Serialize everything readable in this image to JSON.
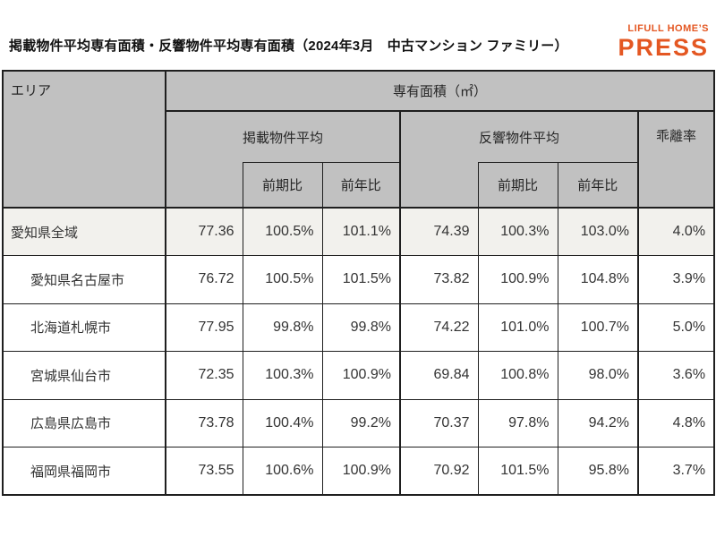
{
  "page": {
    "title": "掲載物件平均専有面積・反響物件平均専有面積（2024年3月　中古マンション ファミリー）",
    "logo": {
      "line1": "LIFULL HOME’S",
      "line2": "PRESS",
      "color": "#E45722"
    }
  },
  "table": {
    "headers": {
      "area": "エリア",
      "senyu_menseki": "専有面積（㎡）",
      "keisai_avg": "掲載物件平均",
      "hankyo_avg": "反響物件平均",
      "kairi_ritsu": "乖離率",
      "zenki_hi": "前期比",
      "zennen_hi": "前年比"
    },
    "colors": {
      "header_bg": "#c1c1c1",
      "highlight_row_bg": "#f2f1ed",
      "border": "#1f1f1f"
    },
    "rows": [
      {
        "area": "愛知県全域",
        "indent": false,
        "highlight": true,
        "keisai": "77.36",
        "keisai_zenki": "100.5%",
        "keisai_zennen": "101.1%",
        "hankyo": "74.39",
        "hankyo_zenki": "100.3%",
        "hankyo_zennen": "103.0%",
        "kairi": "4.0%"
      },
      {
        "area": "愛知県名古屋市",
        "indent": true,
        "highlight": false,
        "keisai": "76.72",
        "keisai_zenki": "100.5%",
        "keisai_zennen": "101.5%",
        "hankyo": "73.82",
        "hankyo_zenki": "100.9%",
        "hankyo_zennen": "104.8%",
        "kairi": "3.9%"
      },
      {
        "area": "北海道札幌市",
        "indent": true,
        "highlight": false,
        "keisai": "77.95",
        "keisai_zenki": "99.8%",
        "keisai_zennen": "99.8%",
        "hankyo": "74.22",
        "hankyo_zenki": "101.0%",
        "hankyo_zennen": "100.7%",
        "kairi": "5.0%"
      },
      {
        "area": "宮城県仙台市",
        "indent": true,
        "highlight": false,
        "keisai": "72.35",
        "keisai_zenki": "100.3%",
        "keisai_zennen": "100.9%",
        "hankyo": "69.84",
        "hankyo_zenki": "100.8%",
        "hankyo_zennen": "98.0%",
        "kairi": "3.6%"
      },
      {
        "area": "広島県広島市",
        "indent": true,
        "highlight": false,
        "keisai": "73.78",
        "keisai_zenki": "100.4%",
        "keisai_zennen": "99.2%",
        "hankyo": "70.37",
        "hankyo_zenki": "97.8%",
        "hankyo_zennen": "94.2%",
        "kairi": "4.8%"
      },
      {
        "area": "福岡県福岡市",
        "indent": true,
        "highlight": false,
        "keisai": "73.55",
        "keisai_zenki": "100.6%",
        "keisai_zennen": "100.9%",
        "hankyo": "70.92",
        "hankyo_zenki": "101.5%",
        "hankyo_zennen": "95.8%",
        "kairi": "3.7%"
      }
    ]
  },
  "chart_data": {
    "type": "table",
    "title": "掲載物件平均専有面積・反響物件平均専有面積（2024年3月　中古マンション ファミリー）",
    "unit": "専有面積（㎡）",
    "column_groups": [
      "エリア",
      "掲載物件平均（値・前期比・前年比）",
      "反響物件平均（値・前期比・前年比）",
      "乖離率"
    ],
    "columns": [
      "エリア",
      "掲載物件平均",
      "掲載物件平均 前期比",
      "掲載物件平均 前年比",
      "反響物件平均",
      "反響物件平均 前期比",
      "反響物件平均 前年比",
      "乖離率"
    ],
    "rows": [
      [
        "愛知県全域",
        77.36,
        "100.5%",
        "101.1%",
        74.39,
        "100.3%",
        "103.0%",
        "4.0%"
      ],
      [
        "愛知県名古屋市",
        76.72,
        "100.5%",
        "101.5%",
        73.82,
        "100.9%",
        "104.8%",
        "3.9%"
      ],
      [
        "北海道札幌市",
        77.95,
        "99.8%",
        "99.8%",
        74.22,
        "101.0%",
        "100.7%",
        "5.0%"
      ],
      [
        "宮城県仙台市",
        72.35,
        "100.3%",
        "100.9%",
        69.84,
        "100.8%",
        "98.0%",
        "3.6%"
      ],
      [
        "広島県広島市",
        73.78,
        "100.4%",
        "99.2%",
        70.37,
        "97.8%",
        "94.2%",
        "4.8%"
      ],
      [
        "福岡県福岡市",
        73.55,
        "100.6%",
        "100.9%",
        70.92,
        "101.5%",
        "95.8%",
        "3.7%"
      ]
    ]
  }
}
